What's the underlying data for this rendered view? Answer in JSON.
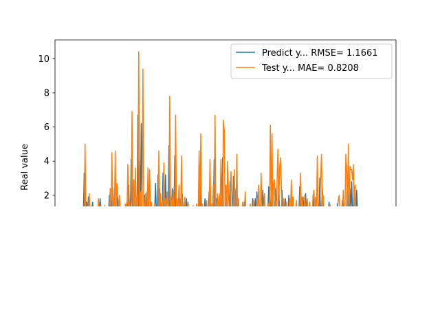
{
  "chart_data": {
    "type": "line",
    "title": "",
    "xlabel": "",
    "ylabel": "Real value",
    "ylim": [
      1.35,
      11.1
    ],
    "yticks": [
      2,
      4,
      6,
      8,
      10
    ],
    "grid": false,
    "legend_position": "top-right",
    "x_count": 370,
    "series": [
      {
        "name": "Predict y... RMSE= 1.1661",
        "color": "#1f77b4",
        "spikes": [
          [
            16,
            3.3
          ],
          [
            19,
            1.6
          ],
          [
            21,
            1.9
          ],
          [
            26,
            1.6
          ],
          [
            35,
            1.8
          ],
          [
            46,
            2.0
          ],
          [
            48,
            1.9
          ],
          [
            50,
            2.4
          ],
          [
            54,
            1.8
          ],
          [
            55,
            1.9
          ],
          [
            67,
            1.6
          ],
          [
            69,
            2.6
          ],
          [
            72,
            4.1
          ],
          [
            73,
            1.9
          ],
          [
            76,
            2.0
          ],
          [
            80,
            6.7
          ],
          [
            82,
            4.0
          ],
          [
            84,
            6.2
          ],
          [
            88,
            2.0
          ],
          [
            91,
            2.2
          ],
          [
            101,
            2.7
          ],
          [
            104,
            3.2
          ],
          [
            106,
            2.4
          ],
          [
            110,
            3.3
          ],
          [
            113,
            3.2
          ],
          [
            117,
            4.9
          ],
          [
            121,
            2.4
          ],
          [
            124,
            4.3
          ],
          [
            130,
            1.8
          ],
          [
            133,
            2.1
          ],
          [
            138,
            1.8
          ],
          [
            154,
            3.7
          ],
          [
            160,
            1.8
          ],
          [
            165,
            2.2
          ],
          [
            171,
            4.1
          ],
          [
            174,
            1.8
          ],
          [
            178,
            2.1
          ],
          [
            181,
            4.2
          ],
          [
            186,
            2.2
          ],
          [
            190,
            2.8
          ],
          [
            194,
            3.1
          ],
          [
            197,
            2.4
          ],
          [
            207,
            1.6
          ],
          [
            217,
            1.8
          ],
          [
            220,
            1.8
          ],
          [
            222,
            2.2
          ],
          [
            226,
            1.5
          ],
          [
            229,
            2.3
          ],
          [
            236,
            2.5
          ],
          [
            239,
            2.2
          ],
          [
            244,
            2.4
          ],
          [
            248,
            2.7
          ],
          [
            252,
            2.3
          ],
          [
            256,
            1.8
          ],
          [
            260,
            2.0
          ],
          [
            264,
            1.9
          ],
          [
            273,
            2.5
          ],
          [
            277,
            1.9
          ],
          [
            280,
            2.1
          ],
          [
            289,
            2.0
          ],
          [
            297,
            3.0
          ],
          [
            300,
            2.4
          ],
          [
            308,
            1.6
          ],
          [
            318,
            1.5
          ],
          [
            324,
            1.7
          ],
          [
            330,
            3.2
          ],
          [
            333,
            2.4
          ],
          [
            335,
            2.8
          ],
          [
            338,
            2.5
          ],
          [
            341,
            2.3
          ]
        ]
      },
      {
        "name": "Test y... MAE= 0.8208",
        "color": "#ff7f0e",
        "spikes": [
          [
            17,
            5.0
          ],
          [
            20,
            1.4
          ],
          [
            22,
            2.1
          ],
          [
            25,
            1.4
          ],
          [
            33,
            1.8
          ],
          [
            36,
            1.4
          ],
          [
            40,
            1.4
          ],
          [
            47,
            2.4
          ],
          [
            49,
            4.5
          ],
          [
            51,
            1.9
          ],
          [
            53,
            4.6
          ],
          [
            55,
            2.7
          ],
          [
            56,
            2.1
          ],
          [
            58,
            2.0
          ],
          [
            65,
            1.5
          ],
          [
            68,
            3.8
          ],
          [
            70,
            1.6
          ],
          [
            73,
            6.9
          ],
          [
            75,
            2.9
          ],
          [
            77,
            3.6
          ],
          [
            79,
            2.0
          ],
          [
            81,
            10.4
          ],
          [
            83,
            2.2
          ],
          [
            86,
            9.4
          ],
          [
            89,
            2.1
          ],
          [
            92,
            3.6
          ],
          [
            94,
            3.5
          ],
          [
            96,
            1.6
          ],
          [
            100,
            1.5
          ],
          [
            105,
            4.6
          ],
          [
            107,
            2.1
          ],
          [
            109,
            1.7
          ],
          [
            111,
            3.9
          ],
          [
            113,
            1.8
          ],
          [
            115,
            2.2
          ],
          [
            118,
            7.8
          ],
          [
            120,
            1.9
          ],
          [
            122,
            2.3
          ],
          [
            125,
            6.7
          ],
          [
            127,
            1.8
          ],
          [
            129,
            2.6
          ],
          [
            132,
            4.3
          ],
          [
            134,
            1.5
          ],
          [
            136,
            1.9
          ],
          [
            140,
            1.6
          ],
          [
            146,
            1.4
          ],
          [
            150,
            1.5
          ],
          [
            153,
            4.6
          ],
          [
            155,
            5.6
          ],
          [
            157,
            1.5
          ],
          [
            162,
            1.7
          ],
          [
            166,
            4.1
          ],
          [
            168,
            1.5
          ],
          [
            170,
            2.6
          ],
          [
            172,
            6.7
          ],
          [
            175,
            2.1
          ],
          [
            177,
            1.9
          ],
          [
            179,
            4.1
          ],
          [
            182,
            6.4
          ],
          [
            183,
            5.8
          ],
          [
            185,
            2.6
          ],
          [
            187,
            4.0
          ],
          [
            188,
            2.2
          ],
          [
            191,
            3.4
          ],
          [
            192,
            2.0
          ],
          [
            195,
            3.5
          ],
          [
            198,
            4.4
          ],
          [
            200,
            1.8
          ],
          [
            205,
            1.6
          ],
          [
            208,
            2.2
          ],
          [
            214,
            1.5
          ],
          [
            218,
            1.7
          ],
          [
            222,
            1.8
          ],
          [
            224,
            2.6
          ],
          [
            227,
            3.3
          ],
          [
            231,
            2.1
          ],
          [
            235,
            1.6
          ],
          [
            238,
            6.1
          ],
          [
            240,
            5.6
          ],
          [
            242,
            2.6
          ],
          [
            243,
            2.9
          ],
          [
            246,
            2.9
          ],
          [
            247,
            4.7
          ],
          [
            249,
            3.6
          ],
          [
            250,
            4.2
          ],
          [
            251,
            2.8
          ],
          [
            254,
            1.8
          ],
          [
            257,
            1.6
          ],
          [
            261,
            1.8
          ],
          [
            263,
            2.9
          ],
          [
            265,
            1.9
          ],
          [
            269,
            1.7
          ],
          [
            274,
            3.3
          ],
          [
            276,
            1.9
          ],
          [
            279,
            2.0
          ],
          [
            282,
            1.8
          ],
          [
            285,
            1.6
          ],
          [
            289,
            2.0
          ],
          [
            290,
            2.3
          ],
          [
            292,
            1.9
          ],
          [
            294,
            4.3
          ],
          [
            298,
            3.1
          ],
          [
            299,
            4.4
          ],
          [
            301,
            2.0
          ],
          [
            309,
            1.5
          ],
          [
            319,
            1.7
          ],
          [
            320,
            2.0
          ],
          [
            325,
            2.3
          ],
          [
            328,
            4.4
          ],
          [
            329,
            3.5
          ],
          [
            331,
            5.0
          ],
          [
            333,
            3.7
          ],
          [
            334,
            3.5
          ],
          [
            335,
            3.5
          ],
          [
            336,
            2.9
          ],
          [
            337,
            3.8
          ],
          [
            339,
            2.6
          ]
        ]
      }
    ]
  }
}
